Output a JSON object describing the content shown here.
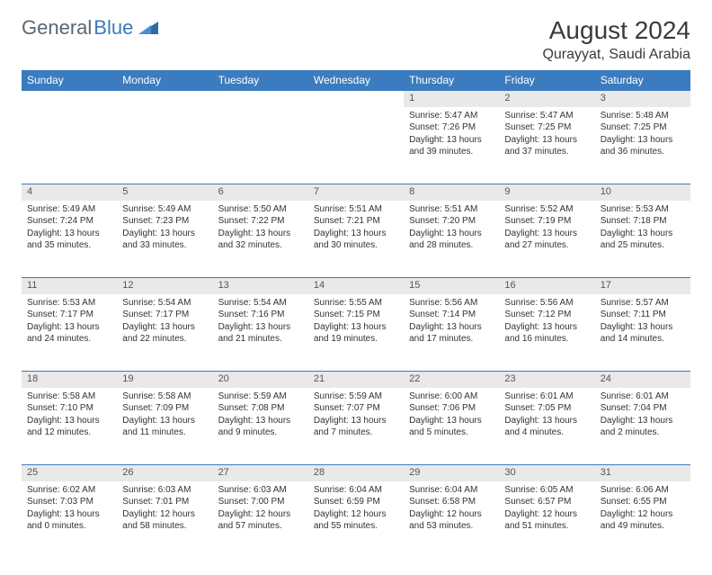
{
  "brand": {
    "part1": "General",
    "part2": "Blue"
  },
  "title": "August 2024",
  "location": "Qurayyat, Saudi Arabia",
  "colors": {
    "header_bg": "#3b7bbf",
    "header_text": "#ffffff",
    "daynum_bg": "#e9e9e9",
    "border": "#3b7bbf",
    "text": "#333333",
    "brand_gray": "#5b6770",
    "brand_blue": "#3b7bbf"
  },
  "day_headers": [
    "Sunday",
    "Monday",
    "Tuesday",
    "Wednesday",
    "Thursday",
    "Friday",
    "Saturday"
  ],
  "weeks": [
    {
      "nums": [
        "",
        "",
        "",
        "",
        "1",
        "2",
        "3"
      ],
      "cells": [
        null,
        null,
        null,
        null,
        {
          "sunrise": "Sunrise: 5:47 AM",
          "sunset": "Sunset: 7:26 PM",
          "daylight": "Daylight: 13 hours and 39 minutes."
        },
        {
          "sunrise": "Sunrise: 5:47 AM",
          "sunset": "Sunset: 7:25 PM",
          "daylight": "Daylight: 13 hours and 37 minutes."
        },
        {
          "sunrise": "Sunrise: 5:48 AM",
          "sunset": "Sunset: 7:25 PM",
          "daylight": "Daylight: 13 hours and 36 minutes."
        }
      ]
    },
    {
      "nums": [
        "4",
        "5",
        "6",
        "7",
        "8",
        "9",
        "10"
      ],
      "cells": [
        {
          "sunrise": "Sunrise: 5:49 AM",
          "sunset": "Sunset: 7:24 PM",
          "daylight": "Daylight: 13 hours and 35 minutes."
        },
        {
          "sunrise": "Sunrise: 5:49 AM",
          "sunset": "Sunset: 7:23 PM",
          "daylight": "Daylight: 13 hours and 33 minutes."
        },
        {
          "sunrise": "Sunrise: 5:50 AM",
          "sunset": "Sunset: 7:22 PM",
          "daylight": "Daylight: 13 hours and 32 minutes."
        },
        {
          "sunrise": "Sunrise: 5:51 AM",
          "sunset": "Sunset: 7:21 PM",
          "daylight": "Daylight: 13 hours and 30 minutes."
        },
        {
          "sunrise": "Sunrise: 5:51 AM",
          "sunset": "Sunset: 7:20 PM",
          "daylight": "Daylight: 13 hours and 28 minutes."
        },
        {
          "sunrise": "Sunrise: 5:52 AM",
          "sunset": "Sunset: 7:19 PM",
          "daylight": "Daylight: 13 hours and 27 minutes."
        },
        {
          "sunrise": "Sunrise: 5:53 AM",
          "sunset": "Sunset: 7:18 PM",
          "daylight": "Daylight: 13 hours and 25 minutes."
        }
      ]
    },
    {
      "nums": [
        "11",
        "12",
        "13",
        "14",
        "15",
        "16",
        "17"
      ],
      "cells": [
        {
          "sunrise": "Sunrise: 5:53 AM",
          "sunset": "Sunset: 7:17 PM",
          "daylight": "Daylight: 13 hours and 24 minutes."
        },
        {
          "sunrise": "Sunrise: 5:54 AM",
          "sunset": "Sunset: 7:17 PM",
          "daylight": "Daylight: 13 hours and 22 minutes."
        },
        {
          "sunrise": "Sunrise: 5:54 AM",
          "sunset": "Sunset: 7:16 PM",
          "daylight": "Daylight: 13 hours and 21 minutes."
        },
        {
          "sunrise": "Sunrise: 5:55 AM",
          "sunset": "Sunset: 7:15 PM",
          "daylight": "Daylight: 13 hours and 19 minutes."
        },
        {
          "sunrise": "Sunrise: 5:56 AM",
          "sunset": "Sunset: 7:14 PM",
          "daylight": "Daylight: 13 hours and 17 minutes."
        },
        {
          "sunrise": "Sunrise: 5:56 AM",
          "sunset": "Sunset: 7:12 PM",
          "daylight": "Daylight: 13 hours and 16 minutes."
        },
        {
          "sunrise": "Sunrise: 5:57 AM",
          "sunset": "Sunset: 7:11 PM",
          "daylight": "Daylight: 13 hours and 14 minutes."
        }
      ]
    },
    {
      "nums": [
        "18",
        "19",
        "20",
        "21",
        "22",
        "23",
        "24"
      ],
      "cells": [
        {
          "sunrise": "Sunrise: 5:58 AM",
          "sunset": "Sunset: 7:10 PM",
          "daylight": "Daylight: 13 hours and 12 minutes."
        },
        {
          "sunrise": "Sunrise: 5:58 AM",
          "sunset": "Sunset: 7:09 PM",
          "daylight": "Daylight: 13 hours and 11 minutes."
        },
        {
          "sunrise": "Sunrise: 5:59 AM",
          "sunset": "Sunset: 7:08 PM",
          "daylight": "Daylight: 13 hours and 9 minutes."
        },
        {
          "sunrise": "Sunrise: 5:59 AM",
          "sunset": "Sunset: 7:07 PM",
          "daylight": "Daylight: 13 hours and 7 minutes."
        },
        {
          "sunrise": "Sunrise: 6:00 AM",
          "sunset": "Sunset: 7:06 PM",
          "daylight": "Daylight: 13 hours and 5 minutes."
        },
        {
          "sunrise": "Sunrise: 6:01 AM",
          "sunset": "Sunset: 7:05 PM",
          "daylight": "Daylight: 13 hours and 4 minutes."
        },
        {
          "sunrise": "Sunrise: 6:01 AM",
          "sunset": "Sunset: 7:04 PM",
          "daylight": "Daylight: 13 hours and 2 minutes."
        }
      ]
    },
    {
      "nums": [
        "25",
        "26",
        "27",
        "28",
        "29",
        "30",
        "31"
      ],
      "cells": [
        {
          "sunrise": "Sunrise: 6:02 AM",
          "sunset": "Sunset: 7:03 PM",
          "daylight": "Daylight: 13 hours and 0 minutes."
        },
        {
          "sunrise": "Sunrise: 6:03 AM",
          "sunset": "Sunset: 7:01 PM",
          "daylight": "Daylight: 12 hours and 58 minutes."
        },
        {
          "sunrise": "Sunrise: 6:03 AM",
          "sunset": "Sunset: 7:00 PM",
          "daylight": "Daylight: 12 hours and 57 minutes."
        },
        {
          "sunrise": "Sunrise: 6:04 AM",
          "sunset": "Sunset: 6:59 PM",
          "daylight": "Daylight: 12 hours and 55 minutes."
        },
        {
          "sunrise": "Sunrise: 6:04 AM",
          "sunset": "Sunset: 6:58 PM",
          "daylight": "Daylight: 12 hours and 53 minutes."
        },
        {
          "sunrise": "Sunrise: 6:05 AM",
          "sunset": "Sunset: 6:57 PM",
          "daylight": "Daylight: 12 hours and 51 minutes."
        },
        {
          "sunrise": "Sunrise: 6:06 AM",
          "sunset": "Sunset: 6:55 PM",
          "daylight": "Daylight: 12 hours and 49 minutes."
        }
      ]
    }
  ]
}
